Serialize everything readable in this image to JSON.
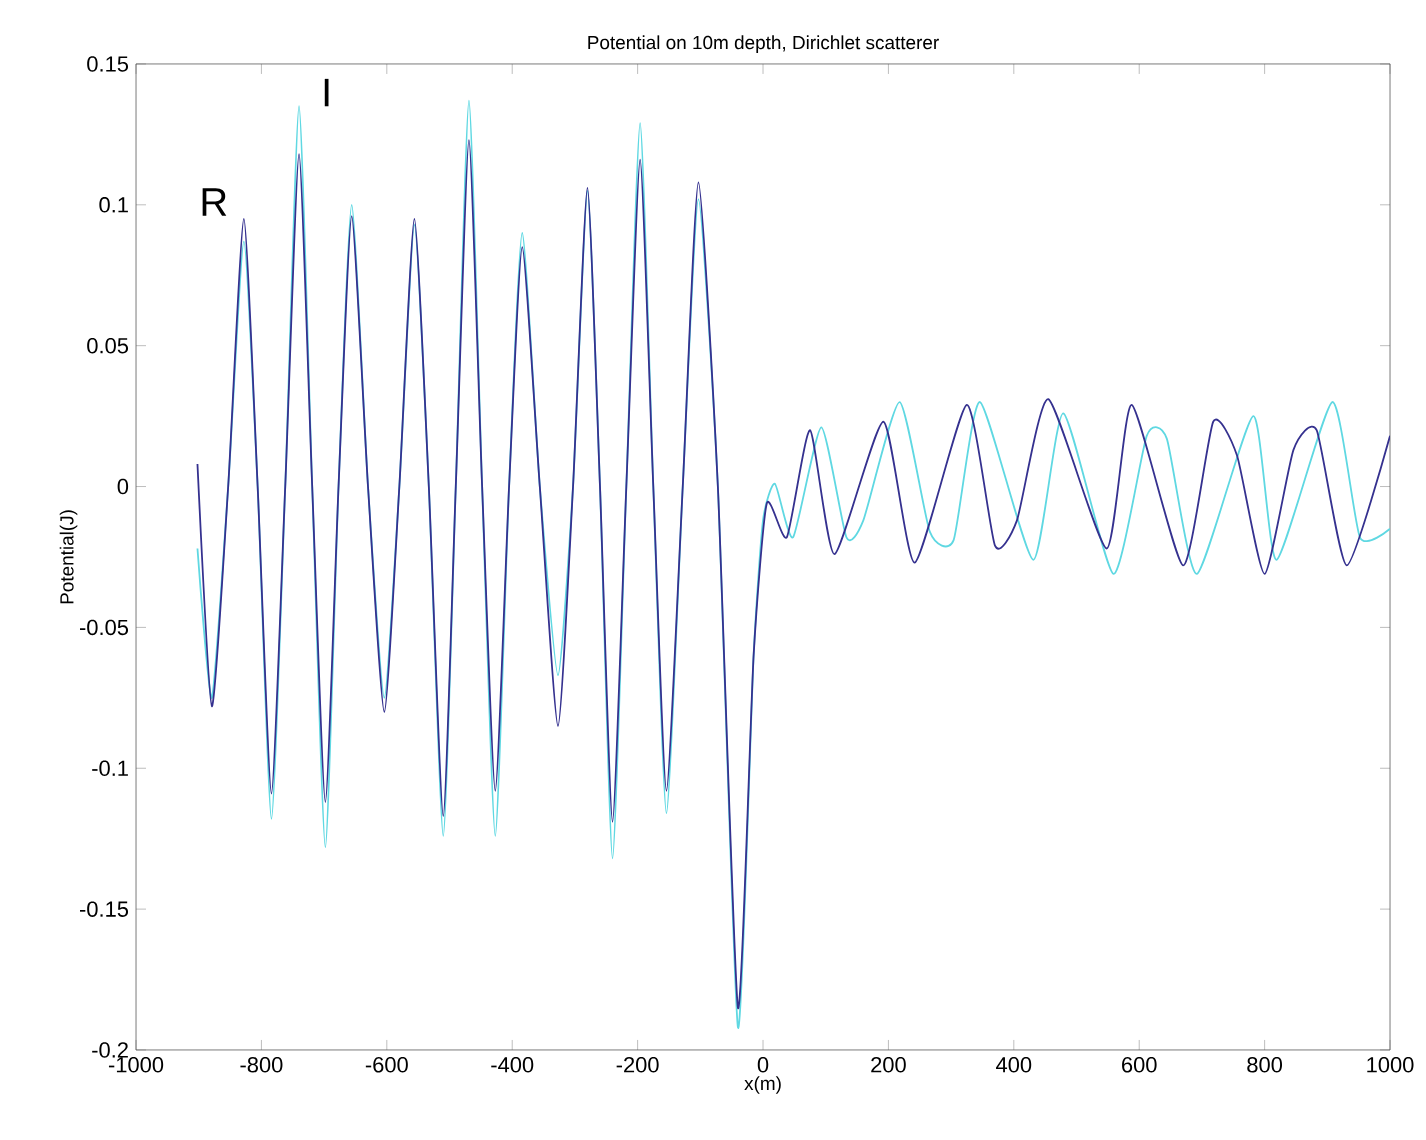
{
  "chart_data": {
    "type": "line",
    "title": "Potential on 10m depth, Dirichlet scatterer",
    "xlabel": "x(m)",
    "ylabel": "Potential(J)",
    "xlim": [
      -1000,
      1000
    ],
    "ylim": [
      -0.2,
      0.15
    ],
    "xticks": [
      -1000,
      -800,
      -600,
      -400,
      -200,
      0,
      200,
      400,
      600,
      800,
      1000
    ],
    "yticks": [
      -0.2,
      -0.15,
      -0.1,
      -0.05,
      0,
      0.05,
      0.1,
      0.15
    ],
    "grid": false,
    "marker": "none",
    "line_style": "solid",
    "annotations": [
      "R",
      "I"
    ],
    "series": [
      {
        "color": "#5fd8e2",
        "x": [
          -902,
          -879,
          -853,
          -828,
          -806,
          -784,
          -762,
          -740,
          -719,
          -698,
          -677,
          -656,
          -630,
          -604,
          -580,
          -556,
          -533,
          -510,
          -490,
          -469,
          -448,
          -427,
          -405,
          -384,
          -356,
          -327,
          -303,
          -280,
          -260,
          -240,
          -218,
          -196,
          -175,
          -154,
          -128,
          -103,
          -72,
          -40,
          -15,
          0,
          19,
          48,
          93,
          133,
          160,
          218,
          266,
          304,
          346,
          431,
          479,
          559,
          612,
          644,
          692,
          782,
          819,
          908,
          952,
          1000
        ],
        "values": [
          -0.022,
          -0.075,
          0,
          0.087,
          0,
          -0.118,
          0,
          0.135,
          0,
          -0.128,
          0,
          0.1,
          0,
          -0.075,
          0,
          0.093,
          0,
          -0.124,
          0,
          0.137,
          0,
          -0.124,
          0,
          0.09,
          0,
          -0.067,
          0,
          0.105,
          0,
          -0.132,
          0,
          0.129,
          0,
          -0.116,
          0,
          0.102,
          0,
          -0.192,
          -0.06,
          -0.012,
          0.001,
          -0.018,
          0.021,
          -0.018,
          -0.012,
          0.03,
          -0.016,
          -0.019,
          0.03,
          -0.026,
          0.026,
          -0.031,
          0.018,
          0.017,
          -0.031,
          0.025,
          -0.026,
          0.03,
          -0.018,
          -0.015
        ]
      },
      {
        "color": "#35318f",
        "x": [
          -902,
          -879,
          -853,
          -828,
          -806,
          -784,
          -762,
          -740,
          -719,
          -698,
          -677,
          -656,
          -630,
          -604,
          -580,
          -556,
          -533,
          -510,
          -490,
          -469,
          -448,
          -427,
          -405,
          -384,
          -356,
          -327,
          -303,
          -280,
          -260,
          -240,
          -218,
          -196,
          -175,
          -154,
          -128,
          -103,
          -72,
          -40,
          -15,
          6,
          38,
          75,
          114,
          192,
          242,
          325,
          370,
          405,
          455,
          548,
          588,
          670,
          718,
          756,
          800,
          846,
          883,
          931,
          1000
        ],
        "values": [
          0.008,
          -0.078,
          0,
          0.095,
          0,
          -0.109,
          0,
          0.118,
          0,
          -0.112,
          0,
          0.096,
          0,
          -0.08,
          0,
          0.095,
          0,
          -0.117,
          0,
          0.123,
          0,
          -0.108,
          0,
          0.085,
          0,
          -0.085,
          0,
          0.106,
          0,
          -0.119,
          0,
          0.116,
          0,
          -0.108,
          0,
          0.108,
          0,
          -0.185,
          -0.06,
          -0.006,
          -0.018,
          0.02,
          -0.024,
          0.023,
          -0.027,
          0.029,
          -0.021,
          -0.012,
          0.031,
          -0.022,
          0.029,
          -0.028,
          0.023,
          0.011,
          -0.031,
          0.013,
          0.02,
          -0.028,
          0.018
        ]
      }
    ]
  }
}
